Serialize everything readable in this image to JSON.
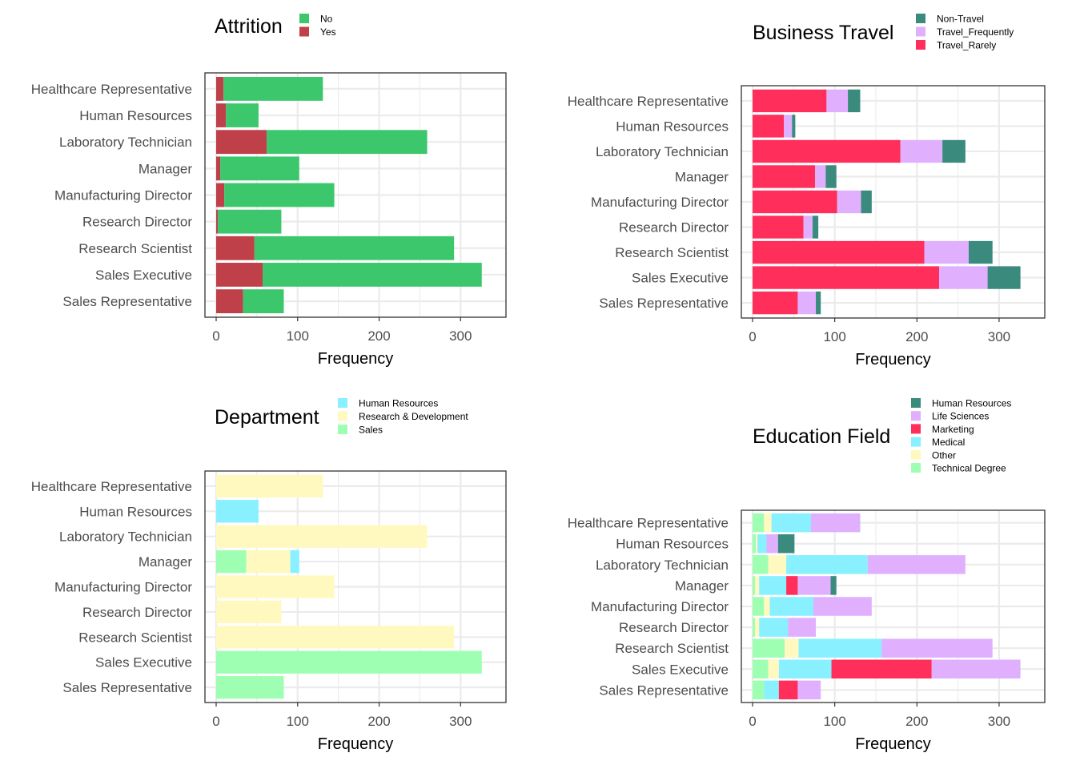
{
  "chart_data": [
    {
      "type": "bar",
      "stacked": true,
      "orientation": "horizontal",
      "legend_title": "Attrition",
      "xlabel": "Frequency",
      "xlim": [
        0,
        340
      ],
      "xticks": [
        0,
        100,
        200,
        300
      ],
      "grid": true,
      "legend_position": "top",
      "categories": [
        "Healthcare Representative",
        "Human Resources",
        "Laboratory Technician",
        "Manager",
        "Manufacturing Director",
        "Research Director",
        "Research Scientist",
        "Sales Executive",
        "Sales Representative"
      ],
      "series": [
        {
          "name": "Yes",
          "color": "#c0404a",
          "values": [
            9,
            12,
            62,
            5,
            10,
            2,
            47,
            57,
            33
          ]
        },
        {
          "name": "No",
          "color": "#3cc76d",
          "values": [
            122,
            40,
            197,
            97,
            135,
            78,
            245,
            269,
            50
          ]
        }
      ],
      "legend": [
        {
          "name": "No",
          "color": "#3cc76d"
        },
        {
          "name": "Yes",
          "color": "#c0404a"
        }
      ]
    },
    {
      "type": "bar",
      "stacked": true,
      "orientation": "horizontal",
      "legend_title": "Business Travel",
      "xlabel": "Frequency",
      "xlim": [
        0,
        340
      ],
      "xticks": [
        0,
        100,
        200,
        300
      ],
      "grid": true,
      "legend_position": "top",
      "categories": [
        "Healthcare Representative",
        "Human Resources",
        "Laboratory Technician",
        "Manager",
        "Manufacturing Director",
        "Research Director",
        "Research Scientist",
        "Sales Executive",
        "Sales Representative"
      ],
      "series": [
        {
          "name": "Travel_Rarely",
          "color": "#ff2e5a",
          "values": [
            90,
            38,
            180,
            76,
            103,
            62,
            209,
            227,
            55
          ]
        },
        {
          "name": "Travel_Frequently",
          "color": "#e0b0ff",
          "values": [
            26,
            10,
            51,
            13,
            29,
            11,
            54,
            59,
            22
          ]
        },
        {
          "name": "Non-Travel",
          "color": "#3a8a7e",
          "values": [
            15,
            4,
            28,
            13,
            13,
            7,
            29,
            40,
            6
          ]
        }
      ],
      "legend": [
        {
          "name": "Non-Travel",
          "color": "#3a8a7e"
        },
        {
          "name": "Travel_Frequently",
          "color": "#e0b0ff"
        },
        {
          "name": "Travel_Rarely",
          "color": "#ff2e5a"
        }
      ]
    },
    {
      "type": "bar",
      "stacked": true,
      "orientation": "horizontal",
      "legend_title": "Department",
      "xlabel": "Frequency",
      "xlim": [
        0,
        340
      ],
      "xticks": [
        0,
        100,
        200,
        300
      ],
      "grid": true,
      "legend_position": "top",
      "categories": [
        "Healthcare Representative",
        "Human Resources",
        "Laboratory Technician",
        "Manager",
        "Manufacturing Director",
        "Research Director",
        "Research Scientist",
        "Sales Executive",
        "Sales Representative"
      ],
      "series": [
        {
          "name": "Sales",
          "color": "#9effb2",
          "values": [
            0,
            0,
            0,
            37,
            0,
            0,
            0,
            326,
            83
          ]
        },
        {
          "name": "Research & Development",
          "color": "#fff9c0",
          "values": [
            131,
            0,
            259,
            54,
            145,
            80,
            292,
            0,
            0
          ]
        },
        {
          "name": "Human Resources",
          "color": "#88f0ff",
          "values": [
            0,
            52,
            0,
            11,
            0,
            0,
            0,
            0,
            0
          ]
        }
      ],
      "legend": [
        {
          "name": "Human Resources",
          "color": "#88f0ff"
        },
        {
          "name": "Research & Development",
          "color": "#fff9c0"
        },
        {
          "name": "Sales",
          "color": "#9effb2"
        }
      ]
    },
    {
      "type": "bar",
      "stacked": true,
      "orientation": "horizontal",
      "legend_title": "Education Field",
      "xlabel": "Frequency",
      "xlim": [
        0,
        340
      ],
      "xticks": [
        0,
        100,
        200,
        300
      ],
      "grid": true,
      "legend_position": "top",
      "categories": [
        "Healthcare Representative",
        "Human Resources",
        "Laboratory Technician",
        "Manager",
        "Manufacturing Director",
        "Research Director",
        "Research Scientist",
        "Sales Executive",
        "Sales Representative"
      ],
      "series": [
        {
          "name": "Technical Degree",
          "color": "#9effb2",
          "values": [
            14,
            4,
            19,
            3,
            14,
            3,
            39,
            19,
            14
          ]
        },
        {
          "name": "Other",
          "color": "#fff9c0",
          "values": [
            9,
            2,
            22,
            5,
            7,
            5,
            17,
            13,
            0
          ]
        },
        {
          "name": "Medical",
          "color": "#88f0ff",
          "values": [
            48,
            11,
            99,
            33,
            53,
            35,
            101,
            64,
            18
          ]
        },
        {
          "name": "Marketing",
          "color": "#ff2e5a",
          "values": [
            0,
            0,
            0,
            14,
            0,
            0,
            0,
            122,
            23
          ]
        },
        {
          "name": "Life Sciences",
          "color": "#e0b0ff",
          "values": [
            60,
            14,
            119,
            40,
            71,
            34,
            135,
            108,
            28
          ]
        },
        {
          "name": "Human Resources",
          "color": "#3a8a7e",
          "values": [
            0,
            20,
            0,
            7,
            0,
            0,
            0,
            0,
            0
          ]
        }
      ],
      "legend": [
        {
          "name": "Human Resources",
          "color": "#3a8a7e"
        },
        {
          "name": "Life Sciences",
          "color": "#e0b0ff"
        },
        {
          "name": "Marketing",
          "color": "#ff2e5a"
        },
        {
          "name": "Medical",
          "color": "#88f0ff"
        },
        {
          "name": "Other",
          "color": "#fff9c0"
        },
        {
          "name": "Technical Degree",
          "color": "#9effb2"
        }
      ]
    }
  ]
}
